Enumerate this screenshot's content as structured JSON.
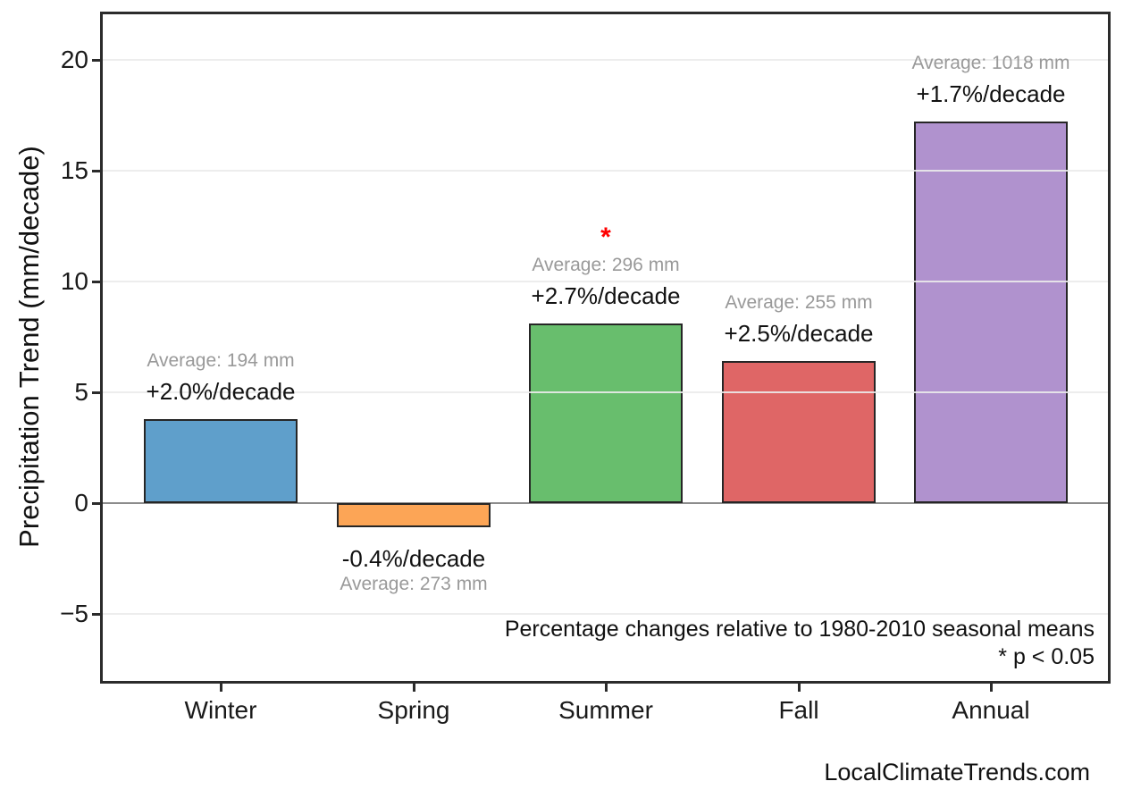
{
  "watermark": "LocalClimateTrends.com",
  "axis": {
    "y_label": "Precipitation Trend (mm/decade)",
    "y_tick_labels": [
      "20",
      "15",
      "10",
      "5",
      "0",
      "−5"
    ],
    "y_tick_values": [
      20,
      15,
      10,
      5,
      0,
      -5
    ],
    "x_tick_labels": [
      "Winter",
      "Spring",
      "Summer",
      "Fall",
      "Annual"
    ]
  },
  "caption": {
    "note": "Percentage changes relative to 1980-2010 seasonal means",
    "significance": "* p < 0.05"
  },
  "chart_data": {
    "type": "bar",
    "title": "",
    "xlabel": "",
    "ylabel": "Precipitation Trend (mm/decade)",
    "ylim": [
      -8.1,
      22.2
    ],
    "grid": true,
    "legend": "none",
    "categories": [
      "Winter",
      "Spring",
      "Summer",
      "Fall",
      "Annual"
    ],
    "values": [
      3.8,
      -1.1,
      8.1,
      6.4,
      17.2
    ],
    "units": "mm/decade",
    "bars": [
      {
        "category": "Winter",
        "value": 3.8,
        "color": "#5F9FCB",
        "average_label": "Average: 194 mm",
        "trend_label": "+2.0%/decade",
        "significant": false
      },
      {
        "category": "Spring",
        "value": -1.1,
        "color": "#FCA556",
        "average_label": "Average: 273 mm",
        "trend_label": "-0.4%/decade",
        "significant": false
      },
      {
        "category": "Summer",
        "value": 8.1,
        "color": "#68BE6D",
        "average_label": "Average: 296 mm",
        "trend_label": "+2.7%/decade",
        "significant": true
      },
      {
        "category": "Fall",
        "value": 6.4,
        "color": "#DF6666",
        "average_label": "Average: 255 mm",
        "trend_label": "+2.5%/decade",
        "significant": false
      },
      {
        "category": "Annual",
        "value": 17.2,
        "color": "#B092CE",
        "average_label": "Average: 1018 mm",
        "trend_label": "+1.7%/decade",
        "significant": false
      }
    ],
    "significance_marker": "*",
    "annotations_note": "* p < 0.05",
    "colors": {
      "significance": "#FF0000",
      "average_text": "#999999",
      "trend_text": "#111111",
      "zero_line": "#8C8C8C",
      "gridline": "#EDEDED",
      "bar_edge": "#262626",
      "spine": "#2B2B2B"
    }
  }
}
